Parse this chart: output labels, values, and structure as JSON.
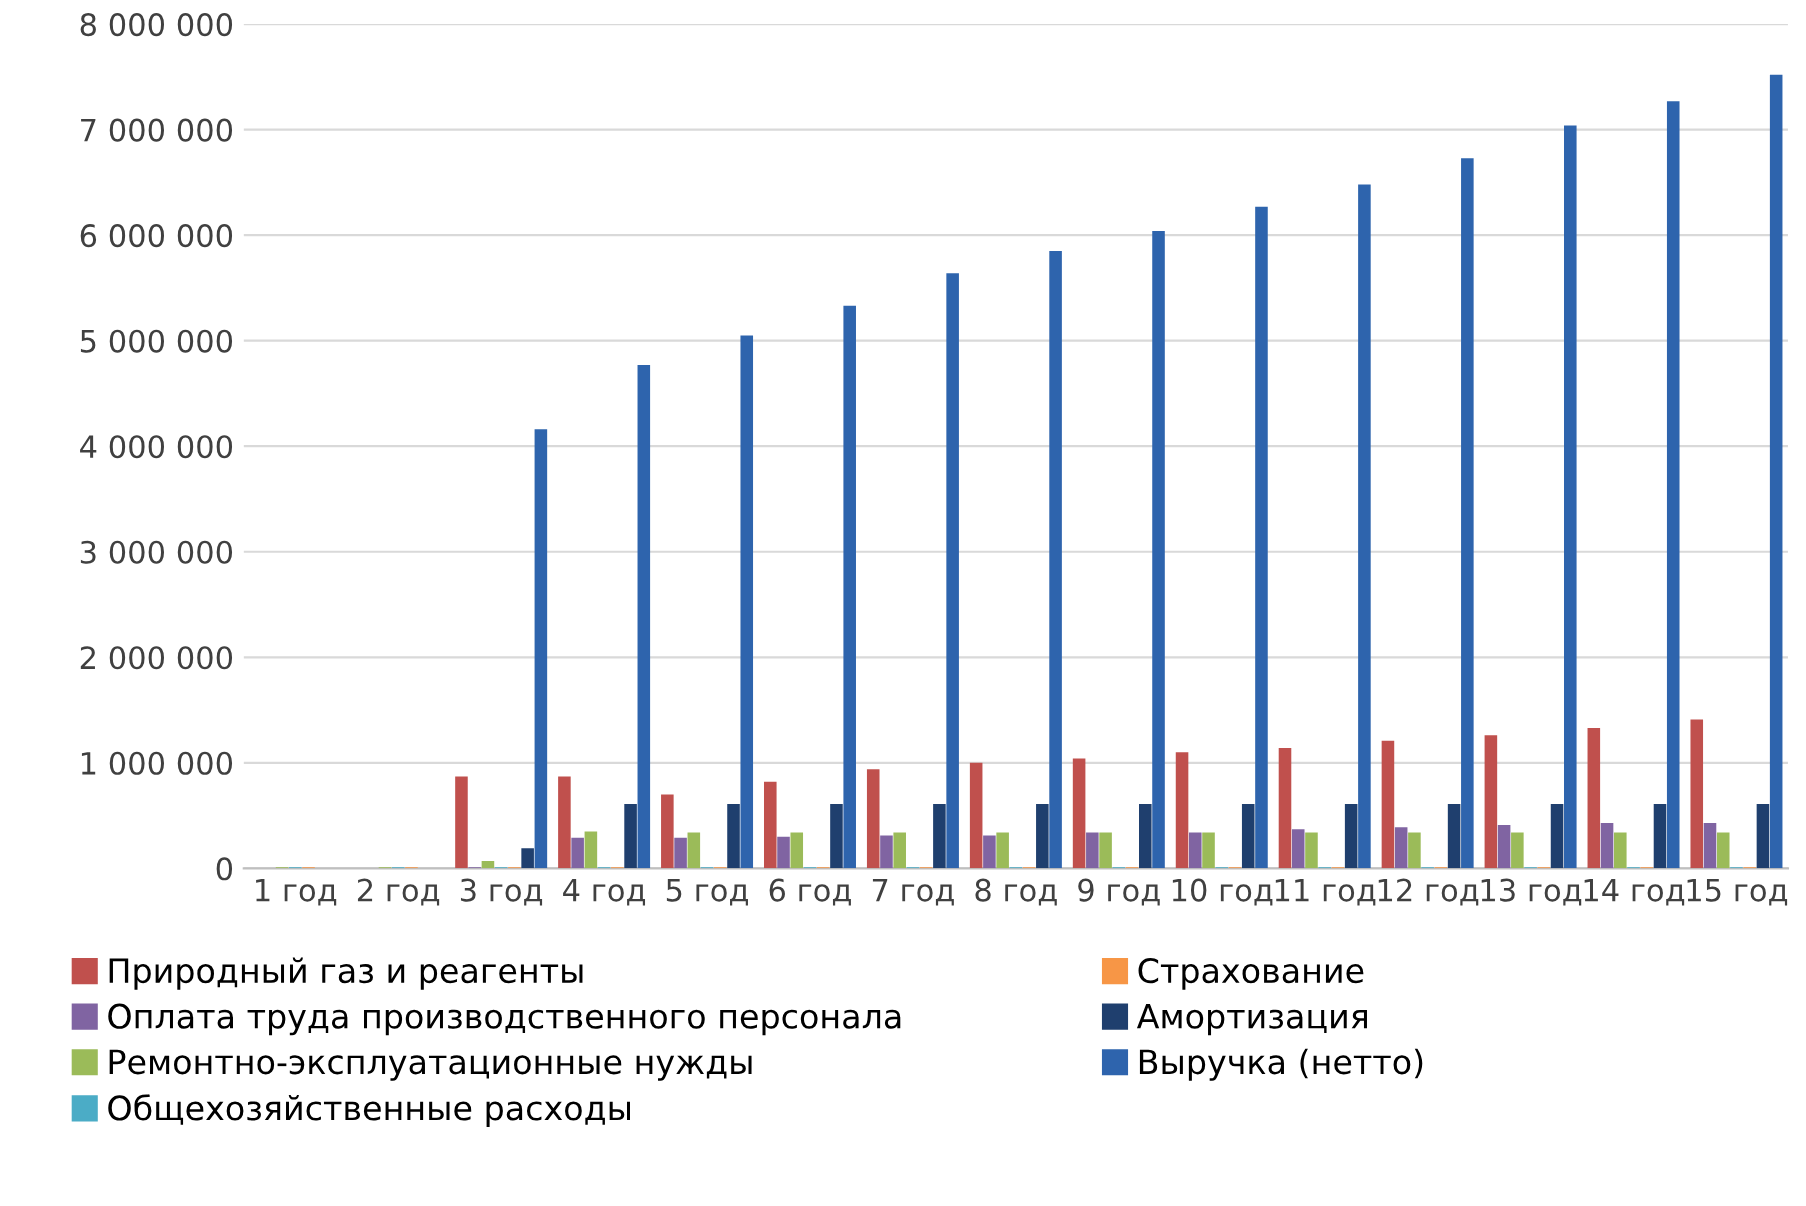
{
  "chart_data": {
    "type": "bar",
    "categories": [
      "1 год",
      "2 год",
      "3 год",
      "4 год",
      "5 год",
      "6 год",
      "7 год",
      "8 год",
      "9 год",
      "10 год",
      "11 год",
      "12 год",
      "13 год",
      "14 год",
      "15 год"
    ],
    "series": [
      {
        "name": "Природный газ и реагенты",
        "color": "#c0504d",
        "values": [
          0,
          0,
          870000,
          870000,
          700000,
          820000,
          940000,
          1000000,
          1040000,
          1100000,
          1140000,
          1210000,
          1260000,
          1330000,
          1410000
        ]
      },
      {
        "name": "Оплата труда производственного персонала",
        "color": "#8064a2",
        "values": [
          0,
          0,
          10000,
          290000,
          290000,
          300000,
          310000,
          310000,
          340000,
          340000,
          370000,
          390000,
          410000,
          430000,
          430000
        ]
      },
      {
        "name": "Ремонтно-эксплуатационные нужды",
        "color": "#9bbb59",
        "values": [
          10000,
          10000,
          70000,
          350000,
          340000,
          340000,
          340000,
          340000,
          340000,
          340000,
          340000,
          340000,
          340000,
          340000,
          340000
        ]
      },
      {
        "name": "Общехозяйственные расходы",
        "color": "#4bacc6",
        "values": [
          10000,
          10000,
          10000,
          10000,
          10000,
          10000,
          10000,
          10000,
          10000,
          10000,
          10000,
          10000,
          10000,
          10000,
          10000
        ]
      },
      {
        "name": "Страхование",
        "color": "#f79646",
        "values": [
          10000,
          10000,
          10000,
          10000,
          10000,
          10000,
          10000,
          10000,
          10000,
          10000,
          10000,
          10000,
          10000,
          10000,
          10000
        ]
      },
      {
        "name": "Амортизация",
        "color": "#1f3f6e",
        "values": [
          0,
          0,
          190000,
          610000,
          610000,
          610000,
          610000,
          610000,
          610000,
          610000,
          610000,
          610000,
          610000,
          610000,
          610000
        ]
      },
      {
        "name": "Выручка (нетто)",
        "color": "#2e64ad",
        "values": [
          0,
          0,
          4160000,
          4770000,
          5050000,
          5330000,
          5640000,
          5850000,
          6040000,
          6270000,
          6480000,
          6730000,
          7040000,
          7270000,
          7520000
        ]
      }
    ],
    "ylim": [
      0,
      8000000
    ],
    "yticks": [
      {
        "value": 0,
        "label": "0"
      },
      {
        "value": 1000000,
        "label": "1 000 000"
      },
      {
        "value": 2000000,
        "label": "2 000 000"
      },
      {
        "value": 3000000,
        "label": "3 000 000"
      },
      {
        "value": 4000000,
        "label": "4 000 000"
      },
      {
        "value": 5000000,
        "label": "5 000 000"
      },
      {
        "value": 6000000,
        "label": "6 000 000"
      },
      {
        "value": 7000000,
        "label": "7 000 000"
      },
      {
        "value": 8000000,
        "label": "8 000 000"
      }
    ],
    "grid": "y",
    "legend": "bottom"
  }
}
